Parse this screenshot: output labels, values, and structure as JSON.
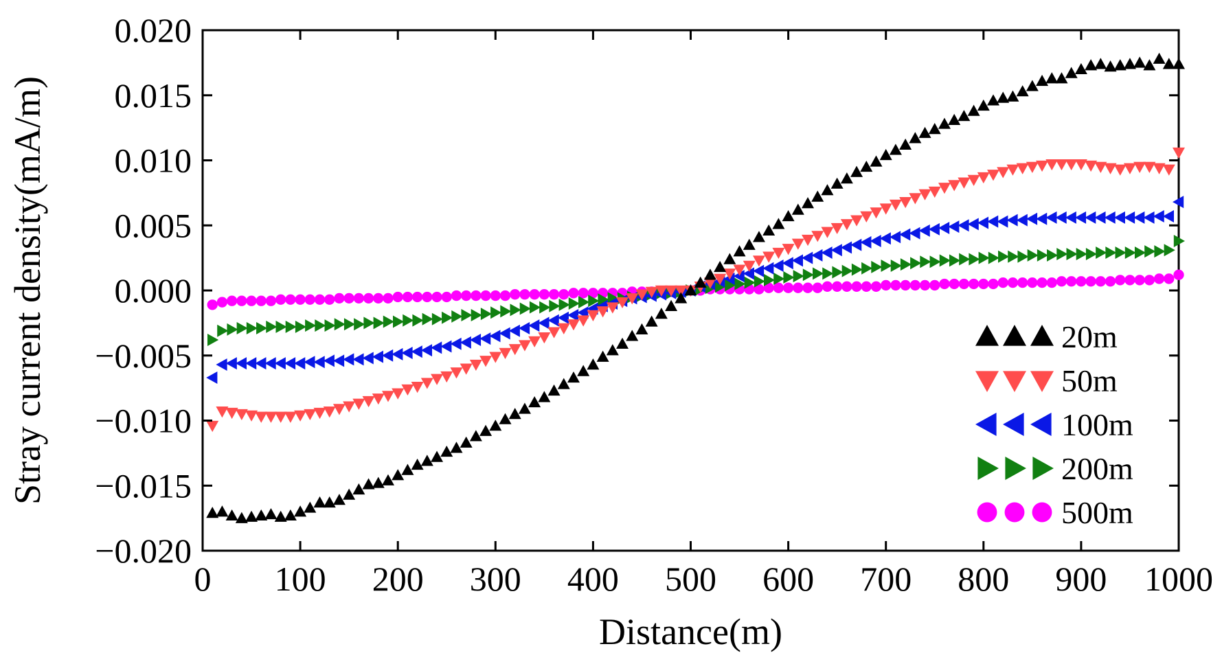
{
  "chart_data": {
    "type": "scatter",
    "title": "",
    "xlabel": "Distance(m)",
    "ylabel": "Stray current density(mA/m)",
    "xlim": [
      0,
      1000
    ],
    "ylim": [
      -0.02,
      0.02
    ],
    "x_ticks": [
      0,
      100,
      200,
      300,
      400,
      500,
      600,
      700,
      800,
      900,
      1000
    ],
    "x_tick_labels": [
      "0",
      "100",
      "200",
      "300",
      "400",
      "500",
      "600",
      "700",
      "800",
      "900",
      "1000"
    ],
    "y_ticks": [
      0.02,
      0.015,
      0.01,
      0.005,
      0.0,
      -0.005,
      -0.01,
      -0.015,
      -0.02
    ],
    "y_tick_labels": [
      "0.020",
      "0.015",
      "0.010",
      "0.005",
      "0.000",
      "−0.005",
      "−0.010",
      "−0.015",
      "−0.020"
    ],
    "legend_position": "right-center",
    "x": [
      10,
      20,
      30,
      40,
      50,
      60,
      70,
      80,
      90,
      100,
      110,
      120,
      130,
      140,
      150,
      160,
      170,
      180,
      190,
      200,
      210,
      220,
      230,
      240,
      250,
      260,
      270,
      280,
      290,
      300,
      310,
      320,
      330,
      340,
      350,
      360,
      370,
      380,
      390,
      400,
      410,
      420,
      430,
      440,
      450,
      460,
      470,
      480,
      490,
      500,
      510,
      520,
      530,
      540,
      550,
      560,
      570,
      580,
      590,
      600,
      610,
      620,
      630,
      640,
      650,
      660,
      670,
      680,
      690,
      700,
      710,
      720,
      730,
      740,
      750,
      760,
      770,
      780,
      790,
      800,
      810,
      820,
      830,
      840,
      850,
      860,
      870,
      880,
      890,
      900,
      910,
      920,
      930,
      940,
      950,
      960,
      970,
      980,
      990,
      1000
    ],
    "series": [
      {
        "name": "20m",
        "color": "#000000",
        "marker": "triangle-up",
        "values": [
          -0.0171,
          -0.017,
          -0.0173,
          -0.0175,
          -0.0174,
          -0.0173,
          -0.0172,
          -0.0174,
          -0.0173,
          -0.017,
          -0.0167,
          -0.0163,
          -0.0163,
          -0.0161,
          -0.0157,
          -0.0153,
          -0.0149,
          -0.0148,
          -0.0146,
          -0.0142,
          -0.0138,
          -0.0134,
          -0.0131,
          -0.0128,
          -0.0124,
          -0.0121,
          -0.0117,
          -0.0112,
          -0.0108,
          -0.0104,
          -0.0099,
          -0.0095,
          -0.0091,
          -0.0086,
          -0.0082,
          -0.0077,
          -0.0072,
          -0.0067,
          -0.0062,
          -0.0057,
          -0.0051,
          -0.0046,
          -0.0041,
          -0.0035,
          -0.003,
          -0.0024,
          -0.0018,
          -0.0012,
          -0.0006,
          0.0,
          0.0006,
          0.0012,
          0.0018,
          0.0024,
          0.003,
          0.0035,
          0.0041,
          0.0046,
          0.0051,
          0.0057,
          0.0062,
          0.0067,
          0.0072,
          0.0077,
          0.0082,
          0.0086,
          0.0091,
          0.0095,
          0.0099,
          0.0104,
          0.0108,
          0.0112,
          0.0117,
          0.0121,
          0.0124,
          0.0128,
          0.0131,
          0.0134,
          0.0138,
          0.0142,
          0.0146,
          0.0148,
          0.0149,
          0.0153,
          0.0157,
          0.0161,
          0.0163,
          0.0163,
          0.0167,
          0.017,
          0.0173,
          0.0174,
          0.0172,
          0.0173,
          0.0174,
          0.0175,
          0.0173,
          0.0178,
          0.0174,
          0.0174
        ]
      },
      {
        "name": "50m",
        "color": "#ff4d4d",
        "marker": "triangle-down",
        "values": [
          -0.0104,
          -0.0093,
          -0.0094,
          -0.0095,
          -0.0096,
          -0.0097,
          -0.0097,
          -0.0097,
          -0.0097,
          -0.0096,
          -0.0095,
          -0.0094,
          -0.0093,
          -0.0091,
          -0.0089,
          -0.0087,
          -0.0085,
          -0.0083,
          -0.0081,
          -0.0079,
          -0.0076,
          -0.0074,
          -0.0071,
          -0.0068,
          -0.0066,
          -0.0063,
          -0.006,
          -0.0057,
          -0.0054,
          -0.0051,
          -0.0048,
          -0.0045,
          -0.0042,
          -0.0039,
          -0.0036,
          -0.0032,
          -0.0029,
          -0.0026,
          -0.0023,
          -0.0019,
          -0.0016,
          -0.0013,
          -0.0009,
          -0.0006,
          -0.0003,
          -0.0001,
          0.0,
          0.0,
          0.0,
          0.0,
          0.0003,
          0.0006,
          0.0009,
          0.0013,
          0.0016,
          0.0019,
          0.0023,
          0.0026,
          0.0029,
          0.0032,
          0.0036,
          0.0039,
          0.0042,
          0.0045,
          0.0048,
          0.0051,
          0.0054,
          0.0057,
          0.006,
          0.0063,
          0.0066,
          0.0068,
          0.0071,
          0.0074,
          0.0076,
          0.0079,
          0.0081,
          0.0083,
          0.0085,
          0.0087,
          0.0089,
          0.0091,
          0.0093,
          0.0094,
          0.0095,
          0.0096,
          0.0097,
          0.0097,
          0.0097,
          0.0097,
          0.0096,
          0.0095,
          0.0094,
          0.0093,
          0.0094,
          0.0095,
          0.0095,
          0.0094,
          0.0093,
          0.0106
        ]
      },
      {
        "name": "100m",
        "color": "#0a18e6",
        "marker": "triangle-left",
        "values": [
          -0.0067,
          -0.0057,
          -0.0056,
          -0.0056,
          -0.0056,
          -0.0056,
          -0.0056,
          -0.0056,
          -0.0056,
          -0.0056,
          -0.0055,
          -0.0055,
          -0.0054,
          -0.0054,
          -0.0053,
          -0.0053,
          -0.0052,
          -0.0051,
          -0.005,
          -0.0049,
          -0.0048,
          -0.0047,
          -0.0046,
          -0.0044,
          -0.0043,
          -0.0041,
          -0.004,
          -0.0038,
          -0.0037,
          -0.0035,
          -0.0033,
          -0.0031,
          -0.0029,
          -0.0027,
          -0.0025,
          -0.0023,
          -0.0021,
          -0.0019,
          -0.0017,
          -0.0014,
          -0.0012,
          -0.001,
          -0.0008,
          -0.0006,
          -0.0005,
          -0.0004,
          -0.0003,
          -0.0002,
          -0.0001,
          0.0,
          0.0003,
          0.0005,
          0.0007,
          0.0009,
          0.0011,
          0.0013,
          0.0015,
          0.0017,
          0.0019,
          0.0021,
          0.0023,
          0.0025,
          0.0027,
          0.0029,
          0.0031,
          0.0033,
          0.0035,
          0.0037,
          0.0038,
          0.004,
          0.0041,
          0.0043,
          0.0044,
          0.0046,
          0.0047,
          0.0048,
          0.0049,
          0.005,
          0.0051,
          0.0052,
          0.0053,
          0.0053,
          0.0054,
          0.0054,
          0.0055,
          0.0055,
          0.0056,
          0.0056,
          0.0056,
          0.0056,
          0.0056,
          0.0056,
          0.0056,
          0.0056,
          0.0056,
          0.0056,
          0.0056,
          0.0057,
          0.0057,
          0.0068
        ]
      },
      {
        "name": "200m",
        "color": "#118011",
        "marker": "triangle-right",
        "values": [
          -0.0038,
          -0.0031,
          -0.003,
          -0.0029,
          -0.0029,
          -0.0029,
          -0.0028,
          -0.0028,
          -0.0028,
          -0.0028,
          -0.0027,
          -0.0027,
          -0.0027,
          -0.0026,
          -0.0026,
          -0.0026,
          -0.0025,
          -0.0025,
          -0.0024,
          -0.0024,
          -0.0023,
          -0.0023,
          -0.0022,
          -0.0022,
          -0.0021,
          -0.002,
          -0.0019,
          -0.0019,
          -0.0018,
          -0.0017,
          -0.0016,
          -0.0015,
          -0.0014,
          -0.0013,
          -0.0013,
          -0.0012,
          -0.0011,
          -0.001,
          -0.0009,
          -0.0008,
          -0.0007,
          -0.0006,
          -0.0006,
          -0.0005,
          -0.0004,
          -0.0003,
          -0.0002,
          -0.0002,
          -0.0001,
          0.0,
          0.0001,
          0.0002,
          0.0003,
          0.0004,
          0.0005,
          0.0006,
          0.0007,
          0.0008,
          0.0009,
          0.001,
          0.0011,
          0.0012,
          0.0013,
          0.0013,
          0.0014,
          0.0015,
          0.0016,
          0.0017,
          0.0018,
          0.0019,
          0.0019,
          0.002,
          0.0021,
          0.0022,
          0.0022,
          0.0023,
          0.0023,
          0.0024,
          0.0024,
          0.0025,
          0.0025,
          0.0026,
          0.0026,
          0.0026,
          0.0027,
          0.0027,
          0.0027,
          0.0028,
          0.0028,
          0.0028,
          0.0028,
          0.0029,
          0.0029,
          0.0029,
          0.0029,
          0.0029,
          0.003,
          0.003,
          0.0031,
          0.0038
        ]
      },
      {
        "name": "500m",
        "color": "#ff00ff",
        "marker": "circle",
        "values": [
          -0.0011,
          -0.0009,
          -0.0008,
          -0.0008,
          -0.0008,
          -0.0008,
          -0.0008,
          -0.0007,
          -0.0007,
          -0.0007,
          -0.0007,
          -0.0007,
          -0.0007,
          -0.0006,
          -0.0006,
          -0.0006,
          -0.0006,
          -0.0006,
          -0.0006,
          -0.0005,
          -0.0005,
          -0.0005,
          -0.0005,
          -0.0005,
          -0.0005,
          -0.0004,
          -0.0004,
          -0.0004,
          -0.0004,
          -0.0004,
          -0.0004,
          -0.0003,
          -0.0003,
          -0.0003,
          -0.0003,
          -0.0003,
          -0.0003,
          -0.0002,
          -0.0002,
          -0.0002,
          -0.0002,
          -0.0002,
          -0.0002,
          -0.0001,
          -0.0001,
          -0.0001,
          -0.0001,
          -0.0001,
          -0.0001,
          0.0,
          0.0,
          0.0001,
          0.0001,
          0.0001,
          0.0001,
          0.0001,
          0.0001,
          0.0002,
          0.0002,
          0.0002,
          0.0002,
          0.0002,
          0.0002,
          0.0003,
          0.0003,
          0.0003,
          0.0003,
          0.0003,
          0.0003,
          0.0004,
          0.0004,
          0.0004,
          0.0004,
          0.0004,
          0.0004,
          0.0005,
          0.0005,
          0.0005,
          0.0005,
          0.0005,
          0.0005,
          0.0006,
          0.0006,
          0.0006,
          0.0006,
          0.0006,
          0.0006,
          0.0007,
          0.0007,
          0.0007,
          0.0007,
          0.0007,
          0.0007,
          0.0008,
          0.0008,
          0.0008,
          0.0008,
          0.0009,
          0.0009,
          0.0012
        ]
      }
    ]
  }
}
